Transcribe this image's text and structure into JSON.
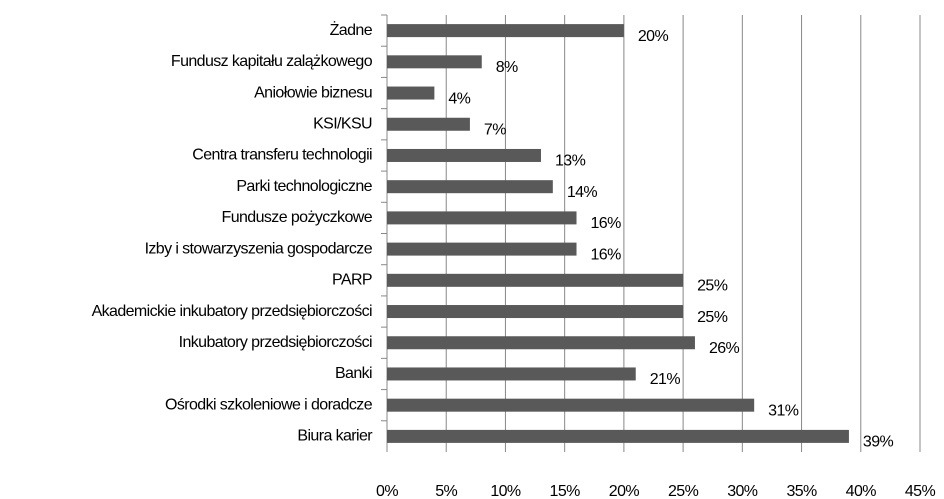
{
  "chart_data": {
    "type": "barh",
    "categories": [
      "Żadne",
      "Fundusz kapitału zalążkowego",
      "Aniołowie biznesu",
      "KSI/KSU",
      "Centra transferu technologii",
      "Parki technologiczne",
      "Fundusze pożyczkowe",
      "Izby i stowarzyszenia gospodarcze",
      "PARP",
      "Akademickie inkubatory przedsiębiorczości",
      "Inkubatory przedsiębiorczości",
      "Banki",
      "Ośrodki szkoleniowe i doradcze",
      "Biura karier"
    ],
    "values": [
      20,
      8,
      4,
      7,
      13,
      14,
      16,
      16,
      25,
      25,
      26,
      21,
      31,
      39
    ],
    "value_labels": [
      "20%",
      "8%",
      "4%",
      "7%",
      "13%",
      "14%",
      "16%",
      "16%",
      "25%",
      "25%",
      "26%",
      "21%",
      "31%",
      "39%"
    ],
    "color": "#595959",
    "xlim": [
      0,
      45
    ],
    "xticks": [
      {
        "value": 0,
        "label": "0%"
      },
      {
        "value": 5,
        "label": "5%"
      },
      {
        "value": 10,
        "label": "10%"
      },
      {
        "value": 15,
        "label": "15%"
      },
      {
        "value": 20,
        "label": "20%"
      },
      {
        "value": 25,
        "label": "25%"
      },
      {
        "value": 30,
        "label": "30%"
      },
      {
        "value": 35,
        "label": "35%"
      },
      {
        "value": 40,
        "label": "40%"
      },
      {
        "value": 45,
        "label": "45%"
      }
    ],
    "grid": true
  }
}
